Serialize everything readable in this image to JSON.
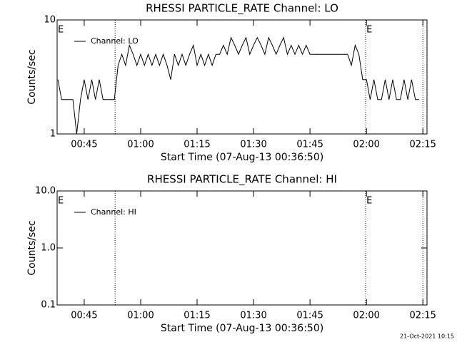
{
  "chart_data": [
    {
      "type": "line",
      "title": "RHESSI PARTICLE_RATE Channel: LO",
      "xlabel": "Start Time (07-Aug-13 00:36:50)",
      "ylabel": "Counts/sec",
      "log_y": true,
      "ylim": [
        1,
        10
      ],
      "yticks": [
        1,
        10
      ],
      "xlim": [
        37.8,
        136.1
      ],
      "xticks": [
        {
          "value": 45,
          "label": "00:45"
        },
        {
          "value": 60,
          "label": "01:00"
        },
        {
          "value": 75,
          "label": "01:15"
        },
        {
          "value": 90,
          "label": "01:30"
        },
        {
          "value": 105,
          "label": "01:45"
        },
        {
          "value": 120,
          "label": "02:00"
        },
        {
          "value": 135,
          "label": "02:15"
        }
      ],
      "markers": [
        53.2,
        119.8,
        135
      ],
      "annotations": [
        "E",
        "E"
      ],
      "series": [
        {
          "name": "Channel: LO",
          "color": "#000000",
          "x": [
            38,
            39,
            40,
            41,
            42,
            43,
            44,
            45,
            46,
            47,
            48,
            49,
            50,
            51,
            52,
            53,
            54,
            55,
            56,
            57,
            58,
            59,
            60,
            61,
            62,
            63,
            64,
            65,
            66,
            67,
            68,
            69,
            70,
            71,
            72,
            73,
            74,
            75,
            76,
            77,
            78,
            79,
            80,
            81,
            82,
            83,
            84,
            85,
            86,
            87,
            88,
            89,
            90,
            91,
            92,
            93,
            94,
            95,
            96,
            97,
            98,
            99,
            100,
            101,
            102,
            103,
            104,
            105,
            106,
            107,
            108,
            109,
            110,
            111,
            112,
            113,
            114,
            115,
            116,
            117,
            118,
            119,
            120,
            121,
            122,
            123,
            124,
            125,
            126,
            127,
            128,
            129,
            130,
            131,
            132,
            133,
            134
          ],
          "values": [
            3,
            2,
            2,
            2,
            2,
            1,
            2,
            3,
            2,
            3,
            2,
            3,
            2,
            2,
            2,
            2,
            4,
            5,
            4,
            6,
            5,
            4,
            5,
            4,
            5,
            4,
            5,
            4,
            5,
            4,
            3,
            5,
            4,
            5,
            4,
            5,
            6,
            4,
            5,
            4,
            5,
            4,
            5,
            5,
            6,
            5,
            7,
            6,
            5,
            6,
            7,
            5,
            6,
            7,
            6,
            5,
            7,
            6,
            5,
            6,
            7,
            5,
            6,
            5,
            6,
            5,
            6,
            5,
            5,
            5,
            5,
            5,
            5,
            5,
            5,
            5,
            5,
            5,
            4,
            6,
            5,
            3,
            3,
            2,
            3,
            2,
            2,
            3,
            2,
            3,
            2,
            2,
            3,
            2,
            3,
            2,
            2
          ]
        }
      ]
    },
    {
      "type": "line",
      "title": "RHESSI PARTICLE_RATE Channel: HI",
      "xlabel": "Start Time (07-Aug-13 00:36:50)",
      "ylabel": "Counts/sec",
      "log_y": true,
      "ylim": [
        0.1,
        10
      ],
      "yticks": [
        0.1,
        {
          "value": 1,
          "label": "1.0"
        },
        {
          "value": 10,
          "label": "10.0"
        }
      ],
      "xlim": [
        37.8,
        136.1
      ],
      "xticks": [
        {
          "value": 45,
          "label": "00:45"
        },
        {
          "value": 60,
          "label": "01:00"
        },
        {
          "value": 75,
          "label": "01:15"
        },
        {
          "value": 90,
          "label": "01:30"
        },
        {
          "value": 105,
          "label": "01:45"
        },
        {
          "value": 120,
          "label": "02:00"
        },
        {
          "value": 135,
          "label": "02:15"
        }
      ],
      "markers": [
        53.2,
        119.8,
        135
      ],
      "annotations": [
        "E",
        "E"
      ],
      "series": [
        {
          "name": "Channel: HI",
          "color": "#000000",
          "x": [],
          "values": []
        }
      ]
    }
  ],
  "footer": "21-Oct-2021 10:15"
}
